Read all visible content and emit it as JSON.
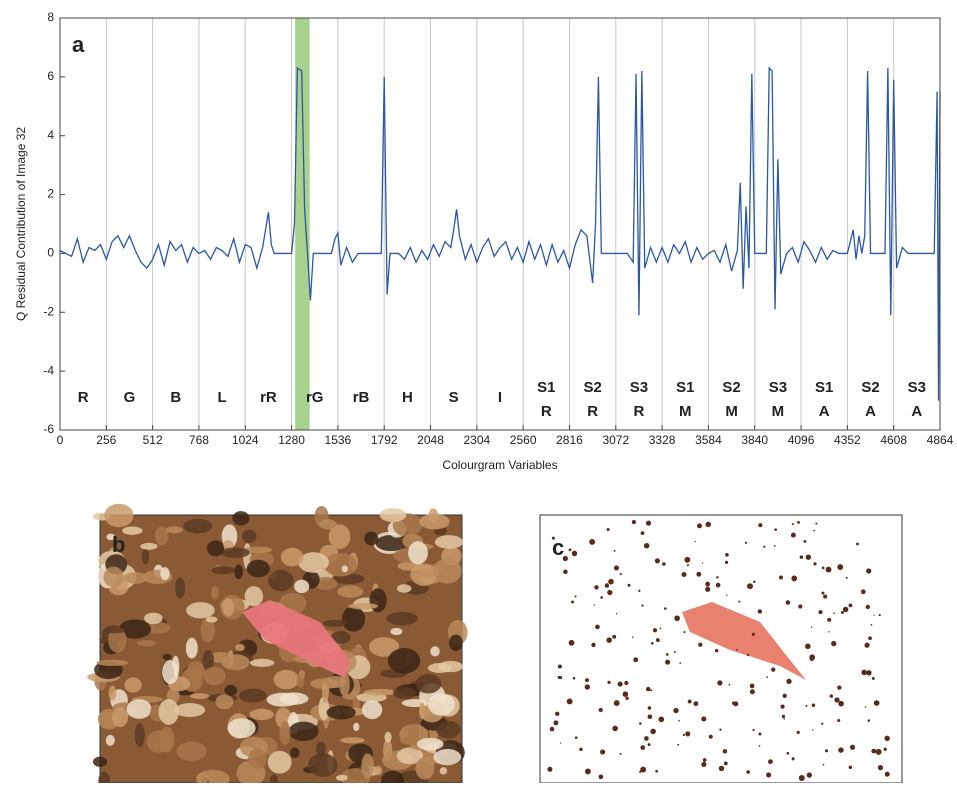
{
  "chart_data": {
    "type": "line",
    "xlabel": "Colourgram Variables",
    "ylabel": "Q Residual Contribution of Image 32",
    "xlim": [
      0,
      4864
    ],
    "ylim": [
      -6,
      8
    ],
    "xticks": [
      0,
      256,
      512,
      768,
      1024,
      1280,
      1536,
      1792,
      2048,
      2304,
      2560,
      2816,
      3072,
      3328,
      3584,
      3840,
      4096,
      4352,
      4608,
      4864
    ],
    "yticks": [
      -6,
      -4,
      -2,
      0,
      2,
      4,
      6,
      8
    ],
    "grid": true,
    "highlight_range": [
      1300,
      1380
    ],
    "highlight_color": "#a9d18e",
    "segment_labels": [
      [
        "R"
      ],
      [
        "G"
      ],
      [
        "B"
      ],
      [
        "L"
      ],
      [
        "rR"
      ],
      [
        "rG"
      ],
      [
        "rB"
      ],
      [
        "H"
      ],
      [
        "S"
      ],
      [
        "I"
      ],
      [
        "S1",
        "R"
      ],
      [
        "S2",
        "R"
      ],
      [
        "S3",
        "R"
      ],
      [
        "S1",
        "M"
      ],
      [
        "S2",
        "M"
      ],
      [
        "S3",
        "M"
      ],
      [
        "S1",
        "A"
      ],
      [
        "S2",
        "A"
      ],
      [
        "S3",
        "A"
      ]
    ],
    "panel_labels": [
      "a",
      "b",
      "c"
    ],
    "x": [
      0,
      32,
      64,
      96,
      128,
      160,
      192,
      224,
      256,
      288,
      320,
      352,
      384,
      416,
      448,
      480,
      512,
      544,
      576,
      608,
      640,
      672,
      704,
      736,
      768,
      800,
      832,
      864,
      896,
      928,
      960,
      992,
      1024,
      1056,
      1088,
      1120,
      1152,
      1168,
      1184,
      1280,
      1296,
      1312,
      1336,
      1352,
      1368,
      1384,
      1400,
      1500,
      1520,
      1536,
      1552,
      1584,
      1616,
      1648,
      1776,
      1792,
      1808,
      1824,
      1872,
      1904,
      1936,
      1968,
      2000,
      2032,
      2064,
      2096,
      2128,
      2160,
      2176,
      2192,
      2208,
      2240,
      2272,
      2304,
      2336,
      2368,
      2400,
      2432,
      2464,
      2496,
      2528,
      2560,
      2592,
      2624,
      2656,
      2688,
      2720,
      2752,
      2784,
      2816,
      2848,
      2880,
      2912,
      2944,
      2960,
      2976,
      2992,
      3024,
      3136,
      3168,
      3184,
      3200,
      3216,
      3232,
      3264,
      3296,
      3328,
      3360,
      3392,
      3424,
      3456,
      3488,
      3520,
      3552,
      3584,
      3616,
      3648,
      3680,
      3712,
      3744,
      3760,
      3776,
      3792,
      3808,
      3824,
      3840,
      3904,
      3920,
      3936,
      3952,
      3968,
      3984,
      4016,
      4048,
      4080,
      4112,
      4144,
      4176,
      4208,
      4240,
      4272,
      4304,
      4352,
      4384,
      4400,
      4416,
      4432,
      4448,
      4464,
      4480,
      4560,
      4576,
      4592,
      4608,
      4624,
      4656,
      4688,
      4832,
      4848,
      4856,
      4864
    ],
    "series": [
      {
        "color": "#2a57a6",
        "values": [
          0.1,
          0,
          -0.1,
          0.5,
          -0.3,
          0.2,
          0.1,
          0.3,
          -0.2,
          0.4,
          0.6,
          0.2,
          0.6,
          0.1,
          -0.3,
          -0.5,
          -0.2,
          0.3,
          -0.4,
          0.4,
          0.1,
          0.3,
          -0.3,
          0.2,
          0,
          0.1,
          -0.2,
          0.2,
          0.1,
          -0.1,
          0.5,
          -0.3,
          0.3,
          0.2,
          -0.5,
          0.2,
          1.4,
          0.3,
          0,
          0,
          1.0,
          6.3,
          6.2,
          1.5,
          0,
          -1.6,
          0,
          0,
          0.5,
          0.7,
          -0.4,
          0.2,
          -0.3,
          0,
          0,
          6.0,
          -1.4,
          0,
          0,
          -0.2,
          0.2,
          -0.3,
          0.1,
          -0.2,
          0.3,
          -0.1,
          0.4,
          0.2,
          0.8,
          1.5,
          0.6,
          -0.2,
          0.3,
          -0.3,
          0.2,
          0.5,
          -0.1,
          0.2,
          0.4,
          -0.2,
          0.2,
          -0.3,
          0.4,
          -0.2,
          0.3,
          -0.4,
          0.3,
          -0.3,
          0.1,
          -0.5,
          0.3,
          0.8,
          0.6,
          -1.0,
          1.0,
          6.0,
          0,
          0,
          0,
          -0.3,
          6.1,
          -2.1,
          6.2,
          -0.5,
          0.2,
          -0.3,
          0.2,
          -0.3,
          0.3,
          0,
          0.4,
          -0.3,
          0.2,
          -0.2,
          0,
          0.1,
          -0.3,
          0.3,
          -0.6,
          0.1,
          2.4,
          -1.2,
          1.6,
          -0.5,
          6.1,
          0,
          0,
          6.3,
          6.2,
          -1.9,
          3.2,
          -0.7,
          0,
          0.2,
          -0.3,
          0.4,
          0.1,
          -0.3,
          0.2,
          -0.2,
          0.1,
          0,
          0,
          0.8,
          -0.2,
          0.6,
          0,
          0.6,
          6.2,
          0,
          0,
          6.3,
          -2.1,
          5.9,
          -0.5,
          0.2,
          0,
          0,
          5.5,
          -5,
          5.5
        ]
      }
    ]
  }
}
